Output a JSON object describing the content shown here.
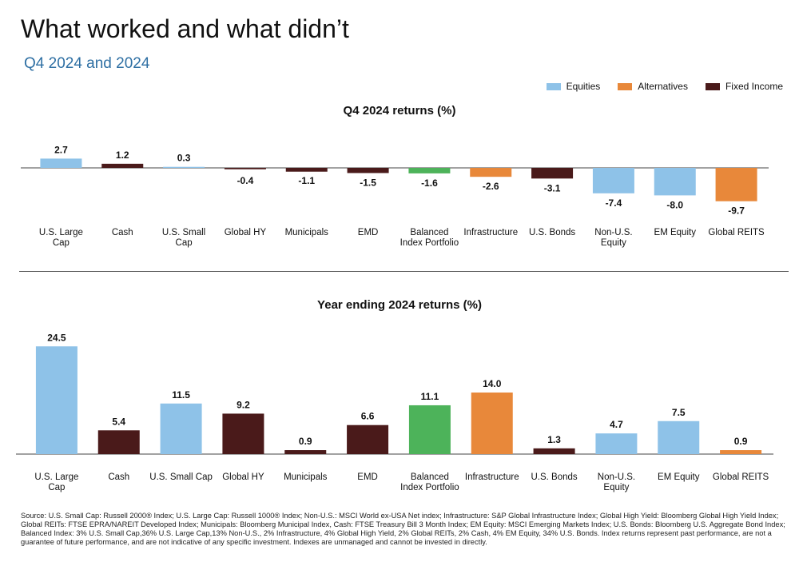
{
  "header": {
    "title": "What worked and what didn’t",
    "subtitle": "Q4 2024 and 2024"
  },
  "legend": [
    {
      "label": "Equities",
      "color": "#8ec2e8"
    },
    {
      "label": "Alternatives",
      "color": "#e8883a"
    },
    {
      "label": "Fixed Income",
      "color": "#4a1a1a"
    }
  ],
  "chart_data": [
    {
      "type": "bar",
      "title": "Q4 2024 returns (%)",
      "categories": [
        "U.S. Large Cap",
        "Cash",
        "U.S. Small Cap",
        "Global HY",
        "Municipals",
        "EMD",
        "Balanced Index Portfolio",
        "Infrastructure",
        "U.S. Bonds",
        "Non-U.S. Equity",
        "EM Equity",
        "Global REITS"
      ],
      "category_lines": [
        [
          "U.S. Large",
          "Cap"
        ],
        [
          "Cash"
        ],
        [
          "U.S. Small",
          "Cap"
        ],
        [
          "Global HY"
        ],
        [
          "Municipals"
        ],
        [
          "EMD"
        ],
        [
          "Balanced",
          "Index Portfolio"
        ],
        [
          "Infrastructure"
        ],
        [
          "U.S. Bonds"
        ],
        [
          "Non-U.S.",
          "Equity"
        ],
        [
          "EM Equity"
        ],
        [
          "Global REITS"
        ]
      ],
      "values": [
        2.7,
        1.2,
        0.3,
        -0.4,
        -1.1,
        -1.5,
        -1.6,
        -2.6,
        -3.1,
        -7.4,
        -8.0,
        -9.7
      ],
      "value_labels": [
        "2.7",
        "1.2",
        "0.3",
        "-0.4",
        "-1.1",
        "-1.5",
        "-1.6",
        "-2.6",
        "-3.1",
        "-7.4",
        "-8.0",
        "-9.7"
      ],
      "groups": [
        "Equities",
        "Fixed Income",
        "Equities",
        "Fixed Income",
        "Fixed Income",
        "Fixed Income",
        "Balanced",
        "Alternatives",
        "Fixed Income",
        "Equities",
        "Equities",
        "Alternatives"
      ],
      "ylim": [
        -9.7,
        2.7
      ]
    },
    {
      "type": "bar",
      "title": "Year ending 2024 returns (%)",
      "categories": [
        "U.S. Large Cap",
        "Cash",
        "U.S. Small Cap",
        "Global HY",
        "Municipals",
        "EMD",
        "Balanced Index Portfolio",
        "Infrastructure",
        "U.S. Bonds",
        "Non-U.S. Equity",
        "EM Equity",
        "Global REITS"
      ],
      "category_lines": [
        [
          "U.S. Large",
          "Cap"
        ],
        [
          "Cash"
        ],
        [
          "U.S. Small Cap"
        ],
        [
          "Global HY"
        ],
        [
          "Municipals"
        ],
        [
          "EMD"
        ],
        [
          "Balanced",
          "Index Portfolio"
        ],
        [
          "Infrastructure"
        ],
        [
          "U.S. Bonds"
        ],
        [
          "Non-U.S.",
          "Equity"
        ],
        [
          "EM Equity"
        ],
        [
          "Global REITS"
        ]
      ],
      "values": [
        24.5,
        5.4,
        11.5,
        9.2,
        0.9,
        6.6,
        11.1,
        14.0,
        1.3,
        4.7,
        7.5,
        0.9
      ],
      "value_labels": [
        "24.5",
        "5.4",
        "11.5",
        "9.2",
        "0.9",
        "6.6",
        "11.1",
        "14.0",
        "1.3",
        "4.7",
        "7.5",
        "0.9"
      ],
      "groups": [
        "Equities",
        "Fixed Income",
        "Equities",
        "Fixed Income",
        "Fixed Income",
        "Fixed Income",
        "Balanced",
        "Alternatives",
        "Fixed Income",
        "Equities",
        "Equities",
        "Alternatives"
      ],
      "ylim": [
        0,
        24.5
      ]
    }
  ],
  "group_colors": {
    "Equities": "#8ec2e8",
    "Alternatives": "#e8883a",
    "Fixed Income": "#4a1a1a",
    "Balanced": "#4db35a"
  },
  "footer": {
    "source": "Source: U.S. Small Cap: Russell 2000® Index; U.S. Large Cap: Russell 1000® Index; Non-U.S.: MSCI World ex-USA Net index; Infrastructure: S&P Global Infrastructure Index; Global High Yield: Bloomberg Global High Yield Index; Global REITs: FTSE EPRA/NAREIT Developed Index; Municipals: Bloomberg Municipal Index, Cash: FTSE Treasury Bill 3 Month Index; EM Equity: MSCI Emerging Markets Index; U.S. Bonds: Bloomberg U.S. Aggregate Bond Index; Balanced Index: 3% U.S. Small Cap,36% U.S. Large Cap,13% Non-U.S., 2% Infrastructure, 4% Global High Yield, 2% Global REITs, 2% Cash, 4% EM Equity, 34% U.S. Bonds. Index returns represent past performance, are not a guarantee of future performance, and are not indicative of any specific investment. Indexes are unmanaged and cannot be invested in directly."
  }
}
